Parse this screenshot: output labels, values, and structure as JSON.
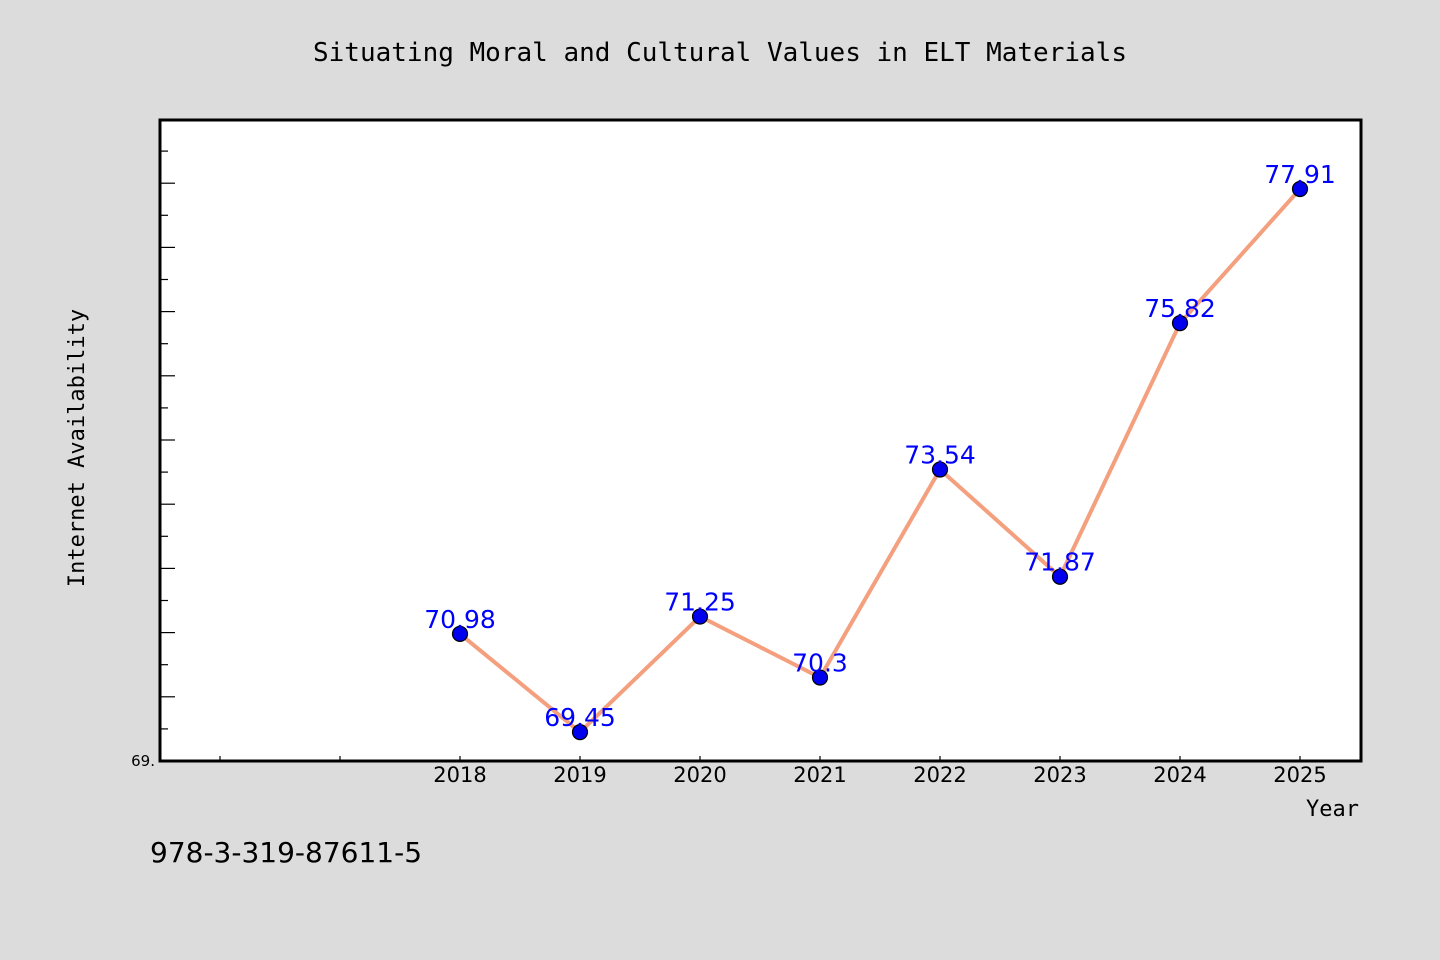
{
  "chart_data": {
    "type": "line",
    "title": "Situating Moral and Cultural Values in ELT Materials",
    "xlabel": "Year",
    "ylabel": "Internet Availability",
    "categories": [
      "2018",
      "2019",
      "2020",
      "2021",
      "2022",
      "2023",
      "2024",
      "2025"
    ],
    "series": [
      {
        "values": [
          70.98,
          69.45,
          71.25,
          70.3,
          73.54,
          71.87,
          75.82,
          77.91
        ],
        "labels": [
          "70.98",
          "69.45",
          "71.25",
          "70.3",
          "73.54",
          "71.87",
          "75.82",
          "77.91"
        ],
        "line_color": "#f4a07e",
        "marker_color": "#0000ee"
      }
    ],
    "ylim": [
      69.0,
      79.0
    ],
    "ytick_label": "69.",
    "grid": false,
    "legend": "none"
  },
  "footer": {
    "text": "978-3-319-87611-5"
  },
  "colors": {
    "background": "#dcdcdc",
    "plot_background": "#ffffff",
    "label_color": "#0000ff"
  }
}
